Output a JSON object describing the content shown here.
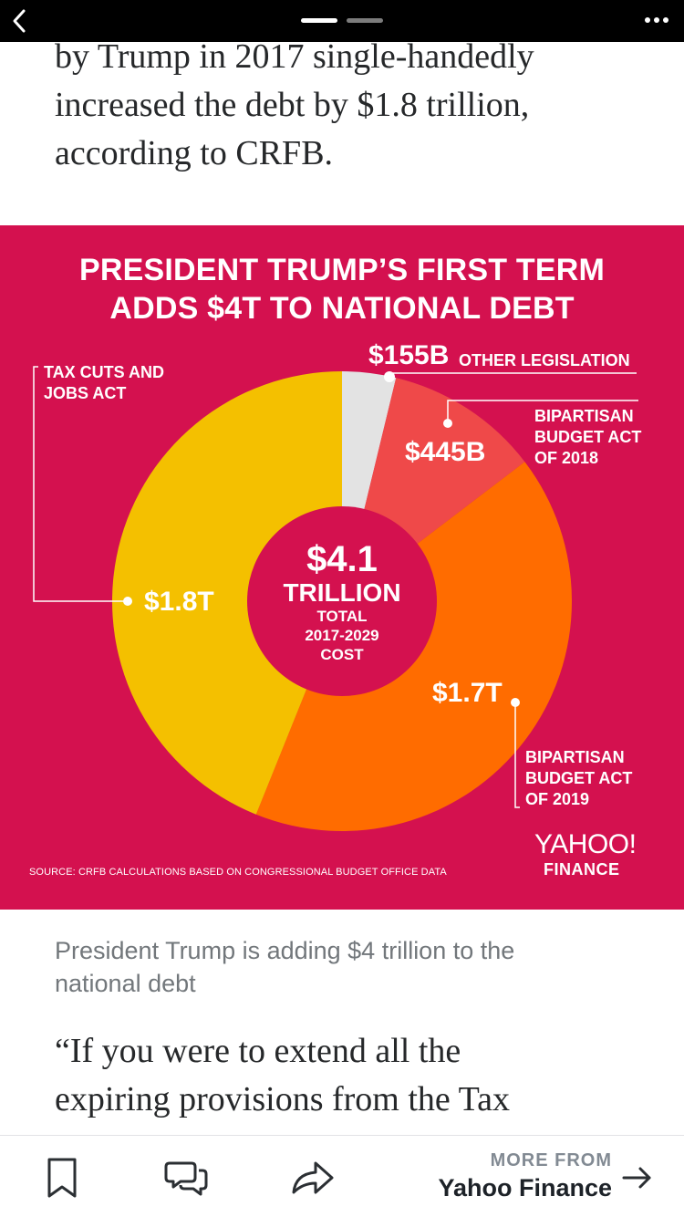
{
  "top_bar": {
    "back_icon": "chevron-left-icon",
    "more_icon": "ellipsis-icon"
  },
  "article": {
    "paragraph_top_lines": [
      "by Trump in 2017 single-handedly",
      "increased the debt by $1.8 trillion,",
      "according to CRFB."
    ],
    "paragraph_bottom_lines": [
      "“If you were to extend all the",
      "expiring provisions from the Tax"
    ]
  },
  "infographic": {
    "title_lines": [
      "PRESIDENT TRUMP’S FIRST TERM",
      "ADDS $4T TO NATIONAL DEBT"
    ],
    "center": {
      "amount": "$4.1",
      "unit": "TRILLION",
      "desc_lines": [
        "TOTAL",
        "2017-2029",
        "COST"
      ]
    },
    "source": "SOURCE:  CRFB CALCULATIONS BASED ON CONGRESSIONAL BUDGET OFFICE DATA",
    "brand": "YAHOO!",
    "brand_sub": "FINANCE",
    "labels": {
      "other_amount": "$155B",
      "other_name": "OTHER LEGISLATION",
      "bba2018_amount": "$445B",
      "bba2018_lines": [
        "BIPARTISAN",
        "BUDGET ACT",
        "OF 2018"
      ],
      "bba2019_amount": "$1.7T",
      "bba2019_lines": [
        "BIPARTISAN",
        "BUDGET ACT",
        "OF 2019"
      ],
      "tcja_amount": "$1.8T",
      "tcja_lines": [
        "TAX CUTS AND",
        "JOBS ACT"
      ]
    }
  },
  "chart_data": {
    "type": "pie",
    "title": "PRESIDENT TRUMP’S FIRST TERM ADDS $4T TO NATIONAL DEBT",
    "center_label": "$4.1 TRILLION TOTAL 2017-2029 COST",
    "unit": "billion USD",
    "slices": [
      {
        "name": "OTHER LEGISLATION",
        "label": "$155B",
        "value": 155,
        "color": "#e3e3e3"
      },
      {
        "name": "BIPARTISAN BUDGET ACT OF 2018",
        "label": "$445B",
        "value": 445,
        "color": "#ef4949"
      },
      {
        "name": "BIPARTISAN BUDGET ACT OF 2019",
        "label": "$1.7T",
        "value": 1700,
        "color": "#ff6c00"
      },
      {
        "name": "TAX CUTS AND JOBS ACT",
        "label": "$1.8T",
        "value": 1800,
        "color": "#f4c000"
      }
    ],
    "start_angle_deg": 0,
    "direction": "clockwise"
  },
  "caption_lines": [
    "President Trump is adding $4 trillion to the",
    "national debt"
  ],
  "bottom_bar": {
    "bookmark_icon": "bookmark-icon",
    "comments_icon": "comments-icon",
    "share_icon": "share-icon",
    "more_from": "MORE FROM",
    "more_source": "Yahoo Finance",
    "arrow_icon": "arrow-right-icon"
  }
}
